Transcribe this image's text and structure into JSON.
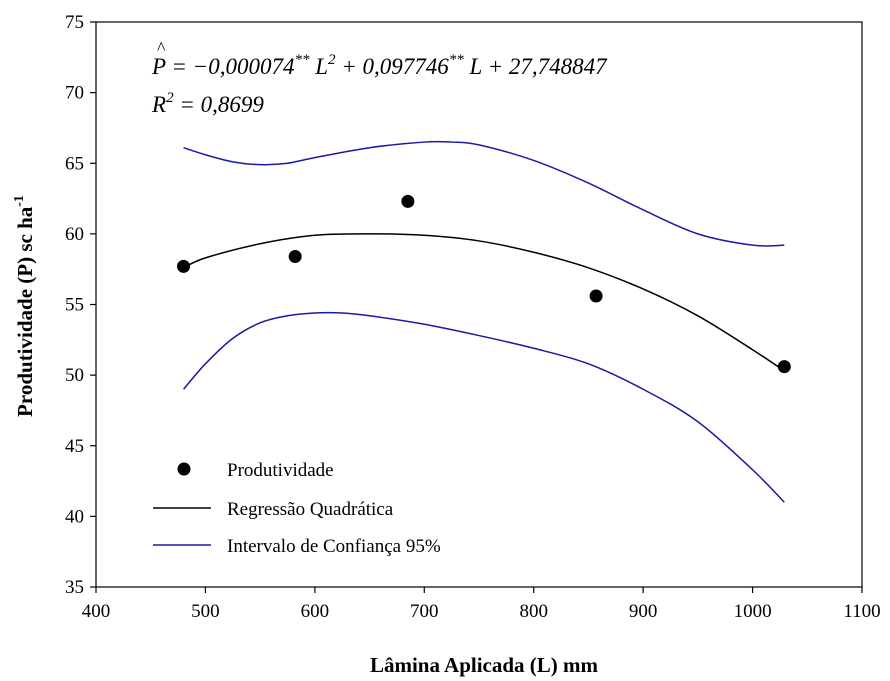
{
  "chart_data": {
    "type": "scatter",
    "xlabel": "Lâmina Aplicada (L) mm",
    "ylabel_main": "Produtividade (P) sc ha",
    "ylabel_sup": "-1",
    "xlim": [
      400,
      1100
    ],
    "ylim": [
      35,
      75
    ],
    "xticks": [
      400,
      500,
      600,
      700,
      800,
      900,
      1000,
      1100
    ],
    "yticks": [
      35,
      40,
      45,
      50,
      55,
      60,
      65,
      70,
      75
    ],
    "grid": false,
    "legend_position": "bottom-left",
    "equation": {
      "lhs": "P",
      "eq": " = ",
      "t1": "−0,000074",
      "t1_sup": "**",
      "var1": " L",
      "var1_sup": "2",
      "t2": " + 0,097746",
      "t2_sup": "**",
      "var2": " L + 27,748847"
    },
    "r2": {
      "lhs": "R",
      "lhs_sup": "2",
      "rest": " = 0,8699"
    },
    "series": [
      {
        "name": "Produtividade",
        "kind": "points",
        "color": "#000000",
        "x": [
          480,
          582,
          685,
          857,
          1029
        ],
        "y": [
          57.7,
          58.4,
          62.3,
          55.6,
          50.6
        ]
      },
      {
        "name": "Regressão Quadrática",
        "kind": "curve",
        "color": "#000000",
        "x": [
          480,
          500,
          550,
          600,
          650,
          700,
          750,
          800,
          850,
          900,
          950,
          1000,
          1029
        ],
        "y": [
          57.6,
          58.3,
          59.3,
          59.9,
          60.0,
          59.9,
          59.5,
          58.7,
          57.6,
          56.1,
          54.2,
          51.8,
          50.3
        ]
      },
      {
        "name": "Intervalo de Confiança 95%",
        "kind": "curve",
        "color": "#1a1aa6",
        "x": [
          480,
          500,
          525,
          550,
          575,
          600,
          650,
          700,
          725,
          750,
          800,
          850,
          900,
          950,
          1000,
          1029
        ],
        "y": [
          66.1,
          65.6,
          65.1,
          64.9,
          65.0,
          65.4,
          66.1,
          66.5,
          66.5,
          66.3,
          65.2,
          63.6,
          61.7,
          60.0,
          59.2,
          59.2
        ]
      },
      {
        "name": "",
        "kind": "curve",
        "color": "#1a1aa6",
        "x": [
          480,
          500,
          525,
          550,
          575,
          600,
          625,
          650,
          700,
          750,
          800,
          850,
          900,
          950,
          1000,
          1029
        ],
        "y": [
          49.0,
          50.8,
          52.6,
          53.7,
          54.2,
          54.4,
          54.4,
          54.2,
          53.6,
          52.8,
          51.9,
          50.8,
          49.0,
          46.7,
          43.3,
          41.0
        ]
      }
    ]
  }
}
